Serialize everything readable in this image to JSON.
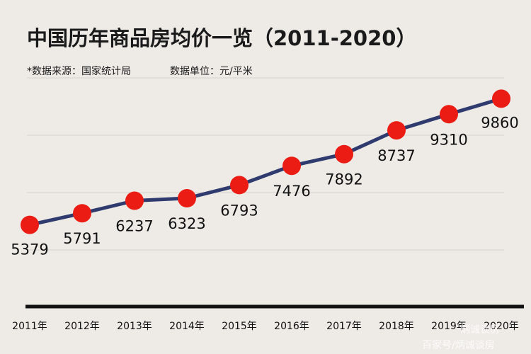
{
  "chart_data": {
    "type": "line",
    "title": "中国历年商品房均价一览（2011-2020）",
    "subtitle": "*数据来源：国家统计局",
    "unit_note": "数据单位：元/平米",
    "categories": [
      "2011年",
      "2012年",
      "2013年",
      "2014年",
      "2015年",
      "2016年",
      "2017年",
      "2018年",
      "2019年",
      "2020年"
    ],
    "values": [
      5379,
      5791,
      6237,
      6323,
      6793,
      7476,
      7892,
      8737,
      9310,
      9860
    ],
    "ylim": [
      2500,
      10500
    ],
    "grid": true,
    "colors": {
      "line": "#2f3b6e",
      "point": "#ea1c14",
      "background": "#eeebe6"
    }
  },
  "watermark": {
    "top": "炳诚谈房",
    "bottom": "百家号/炳诚谈房"
  }
}
